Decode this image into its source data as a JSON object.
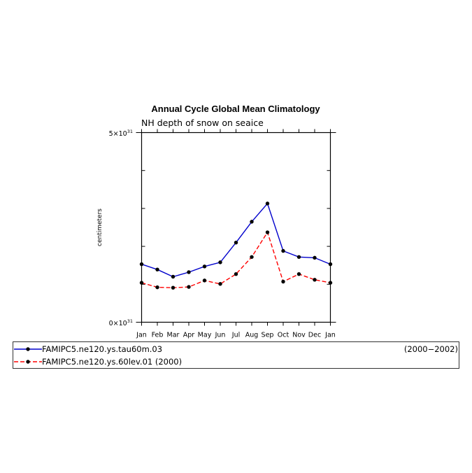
{
  "chart_data": {
    "type": "line",
    "title": "Annual Cycle Global Mean Climatology",
    "subtitle": "NH depth of snow on seaice",
    "ylabel": "centimeters",
    "xlabel": "",
    "categories": [
      "Jan",
      "Feb",
      "Mar",
      "Apr",
      "May",
      "Jun",
      "Jul",
      "Aug",
      "Sep",
      "Oct",
      "Nov",
      "Dec",
      "Jan"
    ],
    "ytick_labels": [
      {
        "mantissa": "5×10",
        "exponent": "31"
      },
      {
        "mantissa": "0×10",
        "exponent": "31"
      }
    ],
    "ylim": [
      0,
      5e+31
    ],
    "grid": false,
    "legend_position": "bottom",
    "series": [
      {
        "name": "FAMIPC5.ne120.ys.tau60m.03",
        "years": "(2000−2002)",
        "color": "#0000cc",
        "dash": "solid",
        "values": [
          1.53e+31,
          1.39e+31,
          1.2e+31,
          1.32e+31,
          1.47e+31,
          1.58e+31,
          2.1e+31,
          2.65e+31,
          3.13e+31,
          1.88e+31,
          1.72e+31,
          1.7e+31,
          1.53e+31
        ]
      },
      {
        "name": "FAMIPC5.ne120.ys.60lev.01",
        "years": "(2000)",
        "color": "#ff0000",
        "dash": "dashed",
        "values": [
          1.04e+31,
          9.2e+30,
          9.1e+30,
          9.3e+30,
          1.1e+31,
          1.01e+31,
          1.27e+31,
          1.72e+31,
          2.37e+31,
          1.07e+31,
          1.27e+31,
          1.12e+31,
          1.04e+31
        ]
      }
    ]
  }
}
